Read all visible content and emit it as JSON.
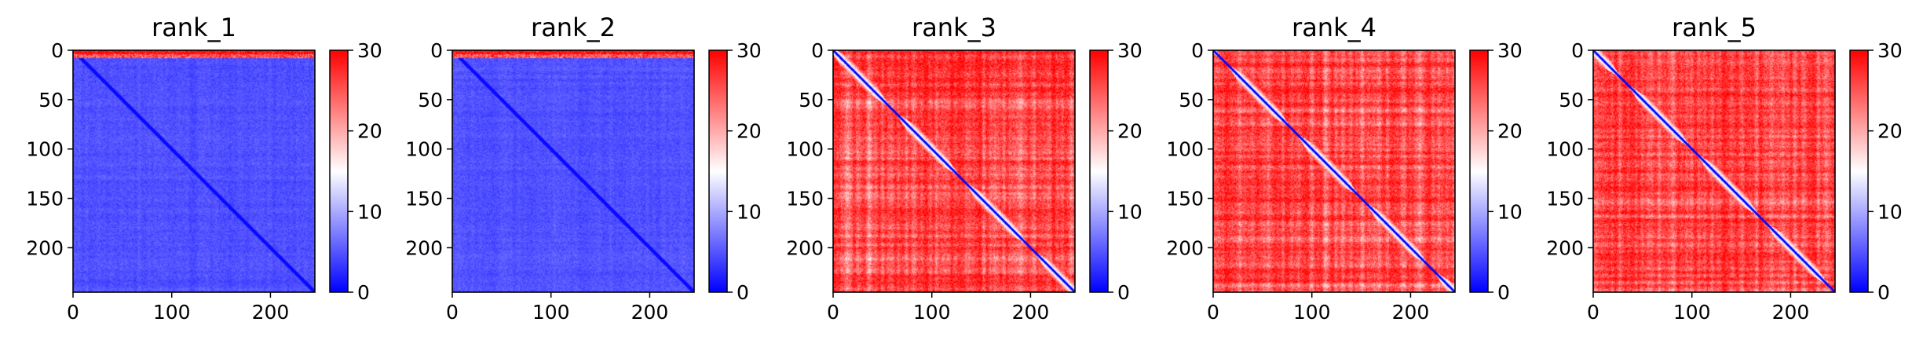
{
  "chart_data": [
    {
      "type": "heatmap",
      "title": "rank_1",
      "pattern": "low",
      "xlim": [
        0,
        245
      ],
      "ylim": [
        245,
        0
      ],
      "xticks": [
        0,
        100,
        200
      ],
      "yticks": [
        0,
        50,
        100,
        150,
        200
      ],
      "xtick_labels": [
        "0",
        "100",
        "200"
      ],
      "ytick_labels": [
        "0",
        "50",
        "100",
        "150",
        "200"
      ],
      "colorbar": {
        "min": 0,
        "max": 30,
        "ticks": [
          0,
          10,
          20,
          30
        ],
        "tick_labels": [
          "0",
          "10",
          "20",
          "30"
        ],
        "colormap": "bwr"
      }
    },
    {
      "type": "heatmap",
      "title": "rank_2",
      "pattern": "low",
      "xlim": [
        0,
        245
      ],
      "ylim": [
        245,
        0
      ],
      "xticks": [
        0,
        100,
        200
      ],
      "yticks": [
        0,
        50,
        100,
        150,
        200
      ],
      "xtick_labels": [
        "0",
        "100",
        "200"
      ],
      "ytick_labels": [
        "0",
        "50",
        "100",
        "150",
        "200"
      ],
      "colorbar": {
        "min": 0,
        "max": 30,
        "ticks": [
          0,
          10,
          20,
          30
        ],
        "tick_labels": [
          "0",
          "10",
          "20",
          "30"
        ],
        "colormap": "bwr"
      }
    },
    {
      "type": "heatmap",
      "title": "rank_3",
      "pattern": "high",
      "xlim": [
        0,
        245
      ],
      "ylim": [
        245,
        0
      ],
      "xticks": [
        0,
        100,
        200
      ],
      "yticks": [
        0,
        50,
        100,
        150,
        200
      ],
      "xtick_labels": [
        "0",
        "100",
        "200"
      ],
      "ytick_labels": [
        "0",
        "50",
        "100",
        "150",
        "200"
      ],
      "colorbar": {
        "min": 0,
        "max": 30,
        "ticks": [
          0,
          10,
          20,
          30
        ],
        "tick_labels": [
          "0",
          "10",
          "20",
          "30"
        ],
        "colormap": "bwr"
      }
    },
    {
      "type": "heatmap",
      "title": "rank_4",
      "pattern": "high",
      "xlim": [
        0,
        245
      ],
      "ylim": [
        245,
        0
      ],
      "xticks": [
        0,
        100,
        200
      ],
      "yticks": [
        0,
        50,
        100,
        150,
        200
      ],
      "xtick_labels": [
        "0",
        "100",
        "200"
      ],
      "ytick_labels": [
        "0",
        "50",
        "100",
        "150",
        "200"
      ],
      "colorbar": {
        "min": 0,
        "max": 30,
        "ticks": [
          0,
          10,
          20,
          30
        ],
        "tick_labels": [
          "0",
          "10",
          "20",
          "30"
        ],
        "colormap": "bwr"
      }
    },
    {
      "type": "heatmap",
      "title": "rank_5",
      "pattern": "high",
      "xlim": [
        0,
        245
      ],
      "ylim": [
        245,
        0
      ],
      "xticks": [
        0,
        100,
        200
      ],
      "yticks": [
        0,
        50,
        100,
        150,
        200
      ],
      "xtick_labels": [
        "0",
        "100",
        "200"
      ],
      "ytick_labels": [
        "0",
        "50",
        "100",
        "150",
        "200"
      ],
      "colorbar": {
        "min": 0,
        "max": 30,
        "ticks": [
          0,
          10,
          20,
          30
        ],
        "tick_labels": [
          "0",
          "10",
          "20",
          "30"
        ],
        "colormap": "bwr"
      }
    }
  ],
  "colors": {
    "low": "#0000ff",
    "mid": "#ffffff",
    "high": "#ff0000"
  }
}
